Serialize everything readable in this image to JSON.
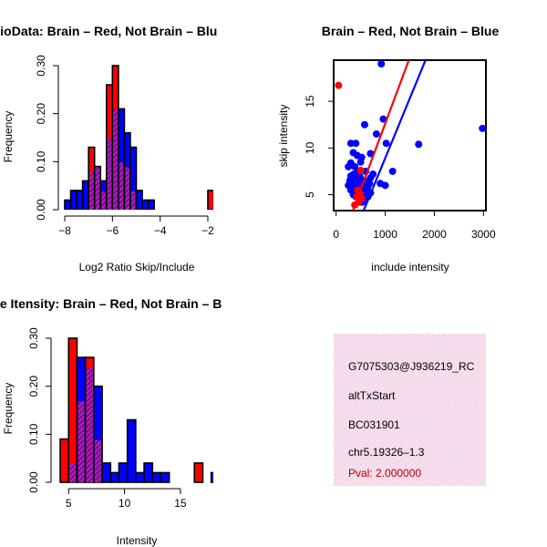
{
  "chart_data": [
    {
      "id": "ratio",
      "type": "bar",
      "title": "RatioData: Brain – Red, Not Brain – Blu",
      "xlabel": "Log2 Ratio Skip/Include",
      "ylabel": "Frequency",
      "xlim": [
        -8,
        -2
      ],
      "ylim": [
        0,
        0.3
      ],
      "xticks": [
        "−8",
        "−6",
        "−4",
        "−2"
      ],
      "xtick_values": [
        -8,
        -6,
        -4,
        -2
      ],
      "yticks": [
        "0.00",
        "0.10",
        "0.20",
        "0.30"
      ],
      "ytick_values": [
        0,
        0.1,
        0.2,
        0.3
      ],
      "bin_width": 0.25,
      "series": [
        {
          "name": "Brain",
          "color": "#ff0000",
          "bins": [
            [
              -7.0,
              0.13
            ],
            [
              -6.75,
              0.09
            ],
            [
              -6.5,
              0.04
            ],
            [
              -6.25,
              0.26
            ],
            [
              -6.0,
              0.3
            ],
            [
              -5.75,
              0.1
            ],
            [
              -5.5,
              0.09
            ],
            [
              -5.25,
              0.04
            ],
            [
              -2.0,
              0.04
            ]
          ]
        },
        {
          "name": "Not Brain",
          "color": "#0000ff",
          "bins": [
            [
              -8.0,
              0.02
            ],
            [
              -7.75,
              0.04
            ],
            [
              -7.5,
              0.04
            ],
            [
              -7.25,
              0.06
            ],
            [
              -7.0,
              0.08
            ],
            [
              -6.75,
              0.09
            ],
            [
              -6.5,
              0.06
            ],
            [
              -6.25,
              0.15
            ],
            [
              -6.0,
              0.21
            ],
            [
              -5.75,
              0.21
            ],
            [
              -5.5,
              0.16
            ],
            [
              -5.25,
              0.13
            ],
            [
              -5.0,
              0.04
            ],
            [
              -4.75,
              0.02
            ],
            [
              -4.5,
              0.02
            ]
          ]
        }
      ]
    },
    {
      "id": "scatter",
      "type": "scatter",
      "title": "Brain – Red, Not Brain – Blue",
      "xlabel": "include intensity",
      "ylabel": "skip intensity",
      "xlim": [
        -50,
        3050
      ],
      "ylim": [
        3.3,
        19.4
      ],
      "xticks": [
        "0",
        "1000",
        "2000",
        "3000"
      ],
      "xtick_values": [
        0,
        1000,
        2000,
        3000
      ],
      "yticks": [
        "5",
        "10",
        "15"
      ],
      "ytick_values": [
        5,
        10,
        15
      ],
      "series": [
        {
          "name": "Not Brain",
          "color": "#0000ff",
          "points": [
            [
              920,
              19.0
            ],
            [
              2980,
              12.1
            ],
            [
              1680,
              10.4
            ],
            [
              1020,
              10.5
            ],
            [
              820,
              11.5
            ],
            [
              960,
              13.1
            ],
            [
              580,
              12.5
            ],
            [
              300,
              10.5
            ],
            [
              400,
              10.5
            ],
            [
              350,
              9.5
            ],
            [
              250,
              8.0
            ],
            [
              500,
              8.5
            ],
            [
              700,
              9.4
            ],
            [
              520,
              9.0
            ],
            [
              430,
              9.2
            ],
            [
              600,
              7.5
            ],
            [
              1150,
              7.5
            ],
            [
              1000,
              6.0
            ],
            [
              900,
              6.2
            ],
            [
              300,
              7.0
            ],
            [
              350,
              6.8
            ],
            [
              400,
              6.5
            ],
            [
              450,
              6.2
            ],
            [
              500,
              6.0
            ],
            [
              550,
              5.8
            ],
            [
              600,
              5.6
            ],
            [
              650,
              6.0
            ],
            [
              700,
              6.8
            ],
            [
              750,
              7.2
            ],
            [
              250,
              6.0
            ],
            [
              300,
              5.5
            ],
            [
              350,
              5.0
            ],
            [
              400,
              4.8
            ],
            [
              450,
              5.2
            ],
            [
              500,
              4.6
            ],
            [
              550,
              5.0
            ],
            [
              600,
              5.4
            ],
            [
              650,
              4.8
            ],
            [
              700,
              5.2
            ],
            [
              280,
              6.5
            ],
            [
              320,
              6.2
            ],
            [
              380,
              5.8
            ],
            [
              420,
              6.0
            ],
            [
              460,
              5.6
            ],
            [
              520,
              5.2
            ],
            [
              560,
              4.5
            ],
            [
              620,
              4.8
            ],
            [
              480,
              7.0
            ],
            [
              520,
              6.6
            ],
            [
              440,
              7.4
            ],
            [
              360,
              7.2
            ],
            [
              300,
              8.4
            ],
            [
              380,
              8.0
            ],
            [
              600,
              6.4
            ],
            [
              640,
              5.8
            ],
            [
              680,
              6.2
            ],
            [
              410,
              4.9
            ],
            [
              470,
              4.4
            ],
            [
              530,
              4.2
            ]
          ]
        },
        {
          "name": "Brain",
          "color": "#ff0000",
          "points": [
            [
              50,
              16.7
            ],
            [
              500,
              7.6
            ],
            [
              420,
              4.8
            ],
            [
              460,
              4.2
            ],
            [
              520,
              4.6
            ],
            [
              380,
              3.9
            ],
            [
              440,
              5.5
            ],
            [
              490,
              5.1
            ]
          ]
        }
      ],
      "fit_lines": [
        {
          "name": "Brain fit",
          "color": "#ff0000",
          "points": [
            [
              340,
              3.3
            ],
            [
              1480,
              19.4
            ]
          ]
        },
        {
          "name": "Not Brain fit",
          "color": "#0000ff",
          "points": [
            [
              560,
              3.3
            ],
            [
              1820,
              19.4
            ]
          ]
        }
      ]
    },
    {
      "id": "intensity",
      "type": "bar",
      "title": "Gene Itensity: Brain – Red, Not Brain – B",
      "xlabel": "Intensity",
      "ylabel": "Frequency",
      "xlim": [
        4,
        19
      ],
      "ylim": [
        0,
        0.3
      ],
      "xticks": [
        "5",
        "10",
        "15"
      ],
      "xtick_values": [
        5,
        10,
        15
      ],
      "yticks": [
        "0.00",
        "0.10",
        "0.20",
        "0.30"
      ],
      "ytick_values": [
        0,
        0.1,
        0.2,
        0.3
      ],
      "bin_width": 0.75,
      "series": [
        {
          "name": "Brain",
          "color": "#ff0000",
          "bins": [
            [
              4.25,
              0.09
            ],
            [
              5.0,
              0.3
            ],
            [
              5.75,
              0.17
            ],
            [
              6.5,
              0.26
            ],
            [
              7.25,
              0.09
            ],
            [
              16.25,
              0.04
            ]
          ]
        },
        {
          "name": "Not Brain",
          "color": "#0000ff",
          "bins": [
            [
              5.0,
              0.04
            ],
            [
              5.75,
              0.26
            ],
            [
              6.5,
              0.24
            ],
            [
              7.25,
              0.2
            ],
            [
              8.0,
              0.04
            ],
            [
              8.75,
              0.02
            ],
            [
              9.5,
              0.04
            ],
            [
              10.25,
              0.13
            ],
            [
              11.0,
              0.02
            ],
            [
              11.75,
              0.04
            ],
            [
              12.5,
              0.02
            ],
            [
              13.25,
              0.02
            ],
            [
              17.75,
              0.02
            ]
          ]
        }
      ]
    }
  ],
  "info_box": {
    "event_id": "G7075303@J936219_RC",
    "event_type": "altTxStart",
    "accession": "BC031901",
    "location": "chr5.19326–1.3",
    "pval": "Pval: 2.000000",
    "bg_color": "#f3d6ea",
    "pval_color": "#b00000"
  },
  "colors": {
    "brain": "#ff0000",
    "not_brain": "#0000ff",
    "overlap": "#a020a0"
  }
}
